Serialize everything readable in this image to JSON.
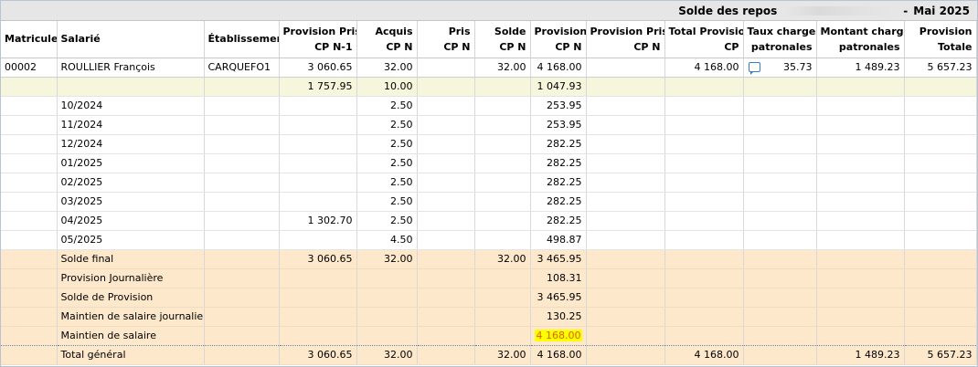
{
  "title": {
    "label": "Solde des repos",
    "dash_sep": "-",
    "period": "Mai 2025"
  },
  "columns": [
    {
      "l1": "Matricule",
      "l2": ""
    },
    {
      "l1": "Salarié",
      "l2": ""
    },
    {
      "l1": "Établissement",
      "l2": ""
    },
    {
      "l1": "Provision Prise",
      "l2": "CP N-1"
    },
    {
      "l1": "Acquis",
      "l2": "CP N"
    },
    {
      "l1": "Pris",
      "l2": "CP N"
    },
    {
      "l1": "Solde",
      "l2": "CP N"
    },
    {
      "l1": "Provision",
      "l2": "CP N"
    },
    {
      "l1": "Provision Prise",
      "l2": "CP N"
    },
    {
      "l1": "Total Provision",
      "l2": "CP"
    },
    {
      "l1": "Taux charges",
      "l2": "patronales"
    },
    {
      "l1": "Montant charges",
      "l2": "patronales"
    },
    {
      "l1": "Provision",
      "l2": "Totale"
    }
  ],
  "employee": {
    "matricule": "00002",
    "salarie": "ROULLIER François",
    "etablissement": "CARQUEFO1",
    "prov_prise_n1": "3 060.65",
    "acquis": "32.00",
    "pris": "",
    "solde": "32.00",
    "provision": "4 168.00",
    "prov_prise_n": "",
    "total_prov": "4 168.00",
    "comment_icon": "comment-icon",
    "taux": "35.73",
    "montant": "1 489.23",
    "prov_totale": "5 657.23"
  },
  "carryover": {
    "prov_prise_n1": "1 757.95",
    "acquis": "10.00",
    "provision": "1 047.93"
  },
  "months": [
    {
      "label": "10/2024",
      "prov_prise_n1": "",
      "acquis": "2.50",
      "provision": "253.95"
    },
    {
      "label": "11/2024",
      "prov_prise_n1": "",
      "acquis": "2.50",
      "provision": "253.95"
    },
    {
      "label": "12/2024",
      "prov_prise_n1": "",
      "acquis": "2.50",
      "provision": "282.25"
    },
    {
      "label": "01/2025",
      "prov_prise_n1": "",
      "acquis": "2.50",
      "provision": "282.25"
    },
    {
      "label": "02/2025",
      "prov_prise_n1": "",
      "acquis": "2.50",
      "provision": "282.25"
    },
    {
      "label": "03/2025",
      "prov_prise_n1": "",
      "acquis": "2.50",
      "provision": "282.25"
    },
    {
      "label": "04/2025",
      "prov_prise_n1": "1 302.70",
      "acquis": "2.50",
      "provision": "282.25"
    },
    {
      "label": "05/2025",
      "prov_prise_n1": "",
      "acquis": "4.50",
      "provision": "498.87"
    }
  ],
  "summary": {
    "solde_final": {
      "label": "Solde final",
      "prov_prise_n1": "3 060.65",
      "acquis": "32.00",
      "solde": "32.00",
      "provision": "3 465.95"
    },
    "prov_journaliere": {
      "label": "Provision Journalière",
      "provision": "108.31"
    },
    "solde_provision": {
      "label": "Solde de Provision",
      "provision": "3 465.95"
    },
    "maintien_journalier": {
      "label": "Maintien de salaire journalier",
      "provision": "130.25"
    },
    "maintien": {
      "label": "Maintien de salaire",
      "provision": "4 168.00"
    },
    "total": {
      "label": "Total général",
      "prov_prise_n1": "3 060.65",
      "acquis": "32.00",
      "solde": "32.00",
      "provision": "4 168.00",
      "total_prov": "4 168.00",
      "montant": "1 489.23",
      "prov_totale": "5 657.23"
    }
  },
  "colors": {
    "yellow_row": "#f6f6dc",
    "orange_row": "#fde8cc",
    "highlight": "#ffff00",
    "highlight_text": "#e06000"
  }
}
